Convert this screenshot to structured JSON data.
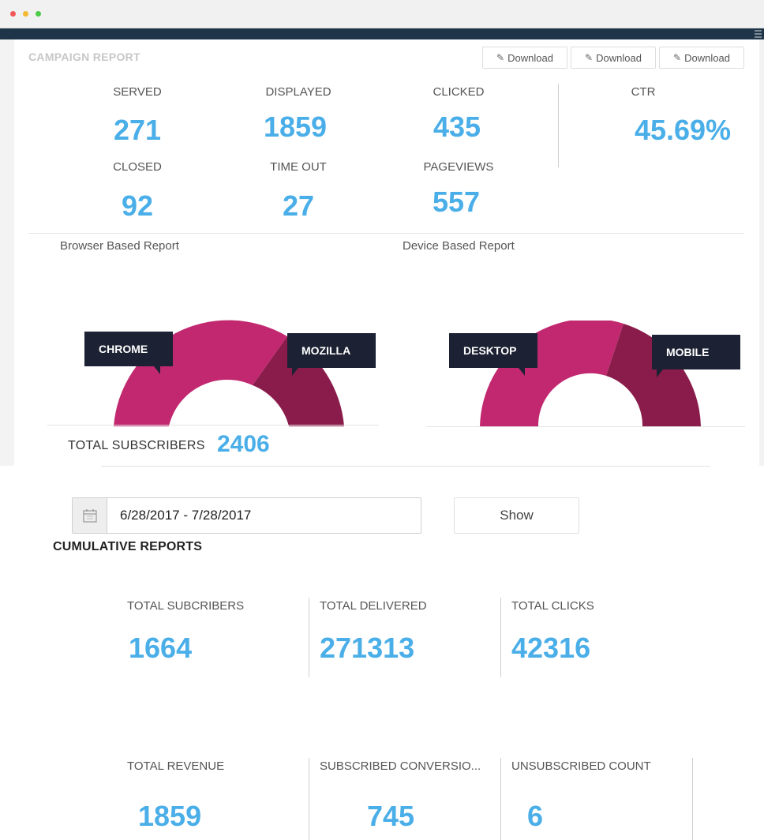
{
  "campaign": {
    "title": "CAMPAIGN REPORT",
    "download_label": "Download",
    "stats": [
      {
        "label": "SERVED",
        "value": "271"
      },
      {
        "label": "DISPLAYED",
        "value": "1859"
      },
      {
        "label": "CLICKED",
        "value": "435"
      },
      {
        "label": "CTR",
        "value": "45.69%"
      },
      {
        "label": "CLOSED",
        "value": "92"
      },
      {
        "label": "TIME OUT",
        "value": "27"
      },
      {
        "label": "PAGEVIEWS",
        "value": "557"
      }
    ]
  },
  "charts": {
    "browser_title": "Browser Based Report",
    "device_title": "Device Based Report",
    "browser_tooltips": [
      "CHROME",
      "MOZILLA"
    ],
    "device_tooltips": [
      "DESKTOP",
      "MOBILE"
    ],
    "colors": {
      "primary": "#c2286f",
      "secondary": "#8a1c4b"
    }
  },
  "subscribers": {
    "label": "TOTAL SUBSCRIBERS",
    "value": "2406"
  },
  "filter": {
    "date_range": "6/28/2017 - 7/28/2017",
    "show_label": "Show",
    "calendar_icon": "calendar-icon"
  },
  "cumulative": {
    "title": "CUMULATIVE REPORTS",
    "items": [
      {
        "label": "TOTAL SUBCRIBERS",
        "value": "1664"
      },
      {
        "label": "TOTAL DELIVERED",
        "value": "271313"
      },
      {
        "label": "TOTAL CLICKS",
        "value": "42316"
      },
      {
        "label": "TOTAL REVENUE",
        "value": "1859"
      },
      {
        "label": "SUBSCRIBED CONVERSIO...",
        "value": "745"
      },
      {
        "label": "UNSUBSCRIBED COUNT",
        "value": "6"
      }
    ]
  },
  "theme": {
    "accent": "#4aaee8",
    "navbar": "#1e3448",
    "tooltip": "#1c2133"
  }
}
